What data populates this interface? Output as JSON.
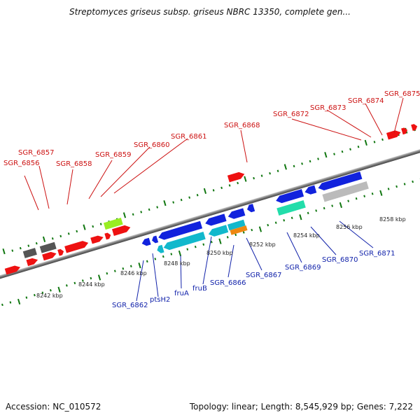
{
  "title": "Streptomyces griseus subsp. griseus NBRC 13350, complete gen...",
  "footer": {
    "accession": "Accession: NC_010572",
    "topology": "Topology: linear; Length: 8,545,929 bp; Genes: 7,222"
  },
  "colors": {
    "red": "#ee1111",
    "gray": "#555555",
    "lightgray": "#bbbbbb",
    "lime": "#99ee22",
    "blue": "#1122dd",
    "cyan": "#11b8cc",
    "orange": "#ee8811",
    "aqua": "#22ddaa",
    "tick": "#117711",
    "redLabel": "#cc1111",
    "blueLabel": "#1122aa"
  },
  "scale_labels": [
    "8242 kbp",
    "8244 kbp",
    "8246 kbp",
    "8248 kbp",
    "8250 kbp",
    "8252 kbp",
    "8254 kbp",
    "8256 kbp",
    "8258 kbp"
  ],
  "top_labels": [
    "SGR_6856",
    "SGR_6857",
    "SGR_6858",
    "SGR_6859",
    "SGR_6860",
    "SGR_6861",
    "SGR_6868",
    "SGR_6872",
    "SGR_6873",
    "SGR_6874",
    "SGR_6875"
  ],
  "bottom_labels": [
    "SGR_6862",
    "ptsH2",
    "fruA",
    "fruB",
    "SGR_6866",
    "SGR_6867",
    "SGR_6869",
    "SGR_6870",
    "SGR_6871"
  ]
}
